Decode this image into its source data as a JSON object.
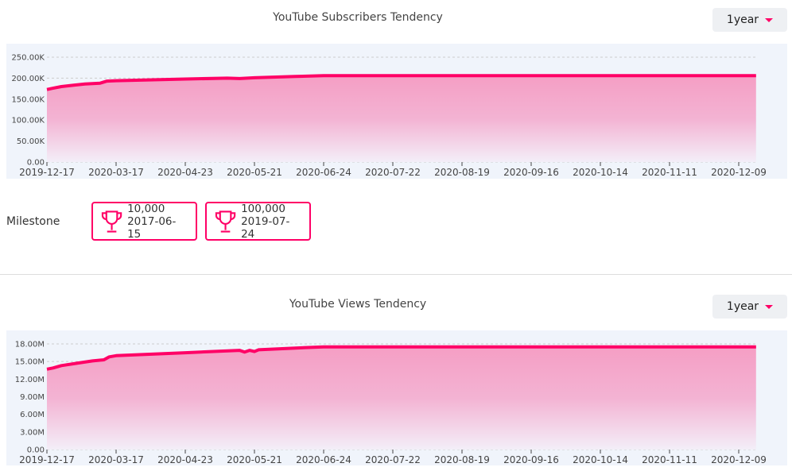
{
  "subscribers": {
    "title": "YouTube Subscribers Tendency",
    "range": "1year",
    "chart_data": {
      "type": "area",
      "x_ticks": [
        "2019-12-17",
        "2020-03-17",
        "2020-04-23",
        "2020-05-21",
        "2020-06-24",
        "2020-07-22",
        "2020-08-19",
        "2020-09-16",
        "2020-10-14",
        "2020-11-11",
        "2020-12-09"
      ],
      "y_ticks": [
        "0.00",
        "50.00K",
        "100.00K",
        "150.00K",
        "200.00K",
        "250.00K"
      ],
      "ylim": [
        0,
        250000
      ],
      "grid": true,
      "color": "#ff0066",
      "points": [
        [
          "2019-12-17",
          173000
        ],
        [
          "2019-12-25",
          176000
        ],
        [
          "2020-01-05",
          180000
        ],
        [
          "2020-01-20",
          183000
        ],
        [
          "2020-02-05",
          186000
        ],
        [
          "2020-02-25",
          188000
        ],
        [
          "2020-03-05",
          193000
        ],
        [
          "2020-03-17",
          194000
        ],
        [
          "2020-04-23",
          198000
        ],
        [
          "2020-05-10",
          200000
        ],
        [
          "2020-05-15",
          199000
        ],
        [
          "2020-05-21",
          201000
        ],
        [
          "2020-06-10",
          204000
        ],
        [
          "2020-06-24",
          206000
        ],
        [
          "2020-12-16",
          206000
        ]
      ]
    }
  },
  "milestone": {
    "label": "Milestone",
    "items": [
      {
        "value": "10,000",
        "date": "2017-06-15",
        "icon": "trophy-icon"
      },
      {
        "value": "100,000",
        "date": "2019-07-24",
        "icon": "trophy-icon"
      }
    ]
  },
  "views": {
    "title": "YouTube Views Tendency",
    "range": "1year",
    "chart_data": {
      "type": "area",
      "x_ticks": [
        "2019-12-17",
        "2020-03-17",
        "2020-04-23",
        "2020-05-21",
        "2020-06-24",
        "2020-07-22",
        "2020-08-19",
        "2020-09-16",
        "2020-10-14",
        "2020-11-11",
        "2020-12-09"
      ],
      "y_ticks": [
        "0.00",
        "3.00M",
        "6.00M",
        "9.00M",
        "12.00M",
        "15.00M",
        "18.00M"
      ],
      "ylim": [
        0,
        18000000
      ],
      "grid": true,
      "color": "#ff0066",
      "points": [
        [
          "2019-12-17",
          13700000
        ],
        [
          "2019-12-25",
          13900000
        ],
        [
          "2020-01-05",
          14300000
        ],
        [
          "2020-01-25",
          14700000
        ],
        [
          "2020-02-15",
          15100000
        ],
        [
          "2020-03-01",
          15300000
        ],
        [
          "2020-03-08",
          15800000
        ],
        [
          "2020-03-17",
          16000000
        ],
        [
          "2020-04-23",
          16500000
        ],
        [
          "2020-05-15",
          16900000
        ],
        [
          "2020-05-17",
          16600000
        ],
        [
          "2020-05-19",
          16900000
        ],
        [
          "2020-05-21",
          16700000
        ],
        [
          "2020-05-23",
          17000000
        ],
        [
          "2020-06-10",
          17300000
        ],
        [
          "2020-06-24",
          17500000
        ],
        [
          "2020-12-16",
          17500000
        ]
      ]
    }
  }
}
